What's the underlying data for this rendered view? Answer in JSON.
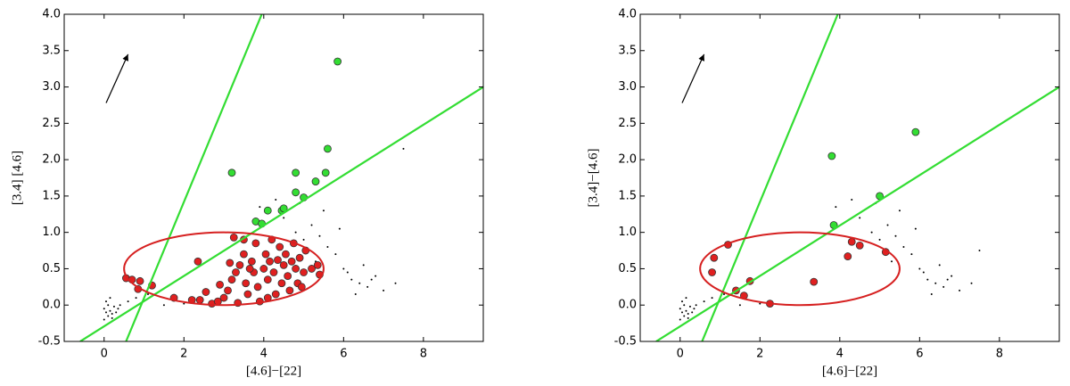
{
  "chart_data": [
    {
      "type": "scatter",
      "x_label": "[4.6]−[22]",
      "y_label": "[3.4]   [4.6]",
      "xlim": [
        -1,
        9.5
      ],
      "ylim": [
        -0.5,
        4.0
      ],
      "xticks": [
        0,
        2,
        4,
        6,
        8
      ],
      "yticks": [
        -0.5,
        {
          "value": 0,
          "label": "0.0"
        },
        0.5,
        {
          "value": 1,
          "label": "1.0"
        },
        1.5,
        {
          "value": 2,
          "label": "2.0"
        },
        2.5,
        {
          "value": 3,
          "label": "3.0"
        },
        3.5,
        {
          "value": 4,
          "label": "4.0"
        }
      ],
      "series": [
        {
          "color": "#000000",
          "marker": "dot",
          "x": [
            0.0,
            0.05,
            0.1,
            0.15,
            0.2,
            0.25,
            0.1,
            0.0,
            0.3,
            0.2,
            0.05,
            0.15,
            0.35,
            0.4,
            0.6,
            0.8,
            1.1,
            1.5,
            2.0,
            3.9,
            4.5,
            4.8,
            5.0,
            5.2,
            5.5,
            5.8,
            6.0,
            6.2,
            6.4,
            6.6,
            6.8,
            7.0,
            5.6,
            6.1,
            6.3,
            5.3,
            4.9,
            6.5,
            7.3,
            5.9,
            7.5,
            4.3,
            6.7,
            5.4
          ],
          "values": [
            -0.05,
            -0.1,
            -0.15,
            -0.08,
            -0.12,
            -0.02,
            0.0,
            -0.2,
            -0.1,
            -0.18,
            0.05,
            0.1,
            -0.05,
            0.0,
            0.05,
            0.1,
            0.15,
            0.0,
            0.02,
            1.35,
            1.2,
            1.0,
            0.9,
            1.1,
            1.3,
            0.7,
            0.5,
            0.35,
            0.3,
            0.25,
            0.4,
            0.2,
            0.8,
            0.45,
            0.15,
            0.6,
            1.4,
            0.55,
            0.3,
            1.05,
            2.15,
            1.45,
            0.35,
            0.95
          ]
        },
        {
          "color": "#e02020",
          "marker": "circle",
          "x": [
            0.55,
            0.7,
            0.9,
            0.85,
            1.2,
            1.75,
            2.2,
            2.4,
            2.35,
            2.7,
            2.85,
            3.0,
            3.1,
            3.2,
            3.3,
            3.15,
            3.4,
            3.5,
            3.55,
            3.6,
            3.7,
            3.75,
            3.8,
            3.85,
            3.9,
            4.0,
            4.05,
            4.1,
            4.15,
            4.2,
            4.25,
            4.3,
            4.35,
            4.4,
            4.45,
            4.5,
            4.55,
            4.6,
            4.65,
            4.7,
            4.75,
            4.8,
            4.85,
            4.9,
            5.0,
            5.05,
            5.2,
            5.35,
            5.4,
            3.25,
            3.5,
            2.9,
            3.35,
            2.55,
            4.1,
            3.65,
            4.95
          ],
          "values": [
            0.37,
            0.35,
            0.33,
            0.22,
            0.27,
            0.1,
            0.07,
            0.07,
            0.6,
            0.02,
            0.05,
            0.1,
            0.2,
            0.35,
            0.45,
            0.58,
            0.55,
            0.7,
            0.3,
            0.15,
            0.6,
            0.45,
            0.85,
            0.25,
            0.05,
            0.5,
            0.7,
            0.35,
            0.6,
            0.9,
            0.45,
            0.15,
            0.62,
            0.8,
            0.3,
            0.55,
            0.7,
            0.4,
            0.2,
            0.6,
            0.85,
            0.5,
            0.3,
            0.65,
            0.45,
            0.75,
            0.5,
            0.55,
            0.42,
            0.93,
            0.9,
            0.28,
            0.03,
            0.18,
            0.1,
            0.5,
            0.25
          ]
        },
        {
          "color": "#33dd33",
          "marker": "circle",
          "x": [
            3.2,
            5.85,
            4.8,
            5.55,
            5.6,
            5.3,
            4.8,
            5.0,
            4.1,
            4.45,
            4.5,
            3.8,
            3.95
          ],
          "values": [
            1.82,
            3.35,
            1.82,
            1.82,
            2.15,
            1.7,
            1.55,
            1.48,
            1.3,
            1.3,
            1.33,
            1.15,
            1.12
          ]
        }
      ],
      "lines": [
        {
          "color": "#33dd33",
          "x": [
            0.55,
            3.95
          ],
          "values": [
            -0.5,
            4.0
          ]
        },
        {
          "color": "#33dd33",
          "x": [
            -0.6,
            9.5
          ],
          "values": [
            -0.5,
            3.0
          ]
        }
      ],
      "ellipse": {
        "color": "#d62020",
        "cx": 3,
        "cy": 0.5,
        "rx": 2.5,
        "ry": 0.5
      },
      "arrow": {
        "color": "#000000",
        "x": [
          0.05,
          0.6
        ],
        "values": [
          2.78,
          3.45
        ]
      }
    },
    {
      "type": "scatter",
      "x_label": "[4.6]−[22]",
      "y_label": "[3.4]−[4.6]",
      "xlim": [
        -1,
        9.5
      ],
      "ylim": [
        -0.5,
        4.0
      ],
      "xticks": [
        0,
        2,
        4,
        6,
        8
      ],
      "yticks": [
        -0.5,
        {
          "value": 0,
          "label": "0.0"
        },
        0.5,
        {
          "value": 1,
          "label": "1.0"
        },
        1.5,
        {
          "value": 2,
          "label": "2.0"
        },
        2.5,
        {
          "value": 3,
          "label": "3.0"
        },
        3.5,
        {
          "value": 4,
          "label": "4.0"
        }
      ],
      "series": [
        {
          "color": "#000000",
          "marker": "dot",
          "x": [
            0.0,
            0.05,
            0.1,
            0.15,
            0.2,
            0.25,
            0.1,
            0.0,
            0.3,
            0.2,
            0.05,
            0.15,
            0.35,
            0.4,
            0.6,
            0.8,
            1.1,
            1.5,
            2.0,
            3.9,
            4.5,
            4.8,
            5.0,
            5.2,
            5.5,
            5.8,
            6.0,
            6.2,
            6.4,
            6.6,
            6.8,
            7.0,
            5.6,
            6.1,
            6.3,
            5.3,
            4.9,
            6.5,
            7.3,
            5.9,
            7.5,
            4.3,
            6.7,
            5.4
          ],
          "values": [
            -0.05,
            -0.1,
            -0.15,
            -0.08,
            -0.12,
            -0.02,
            0.0,
            -0.2,
            -0.1,
            -0.18,
            0.05,
            0.1,
            -0.05,
            0.0,
            0.05,
            0.1,
            0.15,
            0.0,
            0.02,
            1.35,
            1.2,
            1.0,
            0.9,
            1.1,
            1.3,
            0.7,
            0.5,
            0.35,
            0.3,
            0.25,
            0.4,
            0.2,
            0.8,
            0.45,
            0.15,
            0.6,
            1.4,
            0.55,
            0.3,
            1.05,
            0.75,
            1.45,
            0.35,
            0.95
          ]
        },
        {
          "color": "#e02020",
          "marker": "circle",
          "x": [
            1.2,
            0.85,
            0.8,
            1.75,
            1.4,
            1.6,
            2.25,
            3.35,
            4.2,
            4.3,
            4.5,
            5.15
          ],
          "values": [
            0.83,
            0.65,
            0.45,
            0.33,
            0.2,
            0.13,
            0.02,
            0.32,
            0.67,
            0.87,
            0.82,
            0.73
          ]
        },
        {
          "color": "#33dd33",
          "marker": "circle",
          "x": [
            3.8,
            5.9,
            5.0,
            3.85
          ],
          "values": [
            2.05,
            2.38,
            1.5,
            1.1
          ]
        }
      ],
      "lines": [
        {
          "color": "#33dd33",
          "x": [
            0.55,
            3.95
          ],
          "values": [
            -0.5,
            4.0
          ]
        },
        {
          "color": "#33dd33",
          "x": [
            -0.6,
            9.5
          ],
          "values": [
            -0.5,
            3.0
          ]
        }
      ],
      "ellipse": {
        "color": "#d62020",
        "cx": 3,
        "cy": 0.5,
        "rx": 2.5,
        "ry": 0.5
      },
      "arrow": {
        "color": "#000000",
        "x": [
          0.05,
          0.6
        ],
        "values": [
          2.78,
          3.45
        ]
      }
    }
  ]
}
